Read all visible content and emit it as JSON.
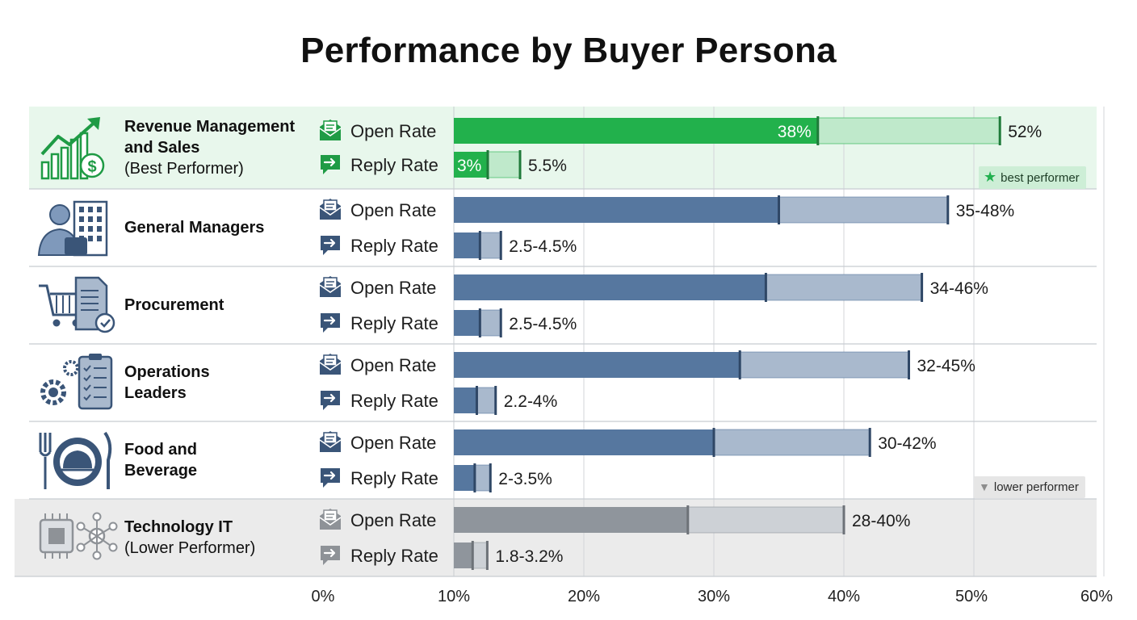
{
  "chart_data": {
    "type": "bar",
    "title": "Performance by Buyer Persona",
    "x_ticks": [
      "0%",
      "10%",
      "20%",
      "30%",
      "40%",
      "50%",
      "60%"
    ],
    "xlim": [
      0,
      60
    ],
    "grid": "vertical",
    "metrics": [
      "Open Rate",
      "Reply Rate"
    ],
    "personas": [
      {
        "name_lines": [
          "Revenue Management",
          "and Sales"
        ],
        "note": "(Best Performer)",
        "icon": "growth-chart-dollar-icon",
        "status": "best",
        "open": {
          "low": 38,
          "high": 52,
          "label": "52%",
          "inner_label": "38%"
        },
        "reply": {
          "low": 3,
          "high": 5.5,
          "label": "5.5%",
          "inner_label": "3%"
        }
      },
      {
        "name_lines": [
          "General Managers"
        ],
        "note": "",
        "icon": "manager-building-icon",
        "status": "normal",
        "open": {
          "low": 35,
          "high": 48,
          "label": "35-48%"
        },
        "reply": {
          "low": 2.5,
          "high": 4.5,
          "label": "2.5-4.5%"
        }
      },
      {
        "name_lines": [
          "Procurement"
        ],
        "note": "",
        "icon": "cart-document-icon",
        "status": "normal",
        "open": {
          "low": 34,
          "high": 46,
          "label": "34-46%"
        },
        "reply": {
          "low": 2.5,
          "high": 4.5,
          "label": "2.5-4.5%"
        }
      },
      {
        "name_lines": [
          "Operations",
          "Leaders"
        ],
        "note": "",
        "icon": "gears-clipboard-icon",
        "status": "normal",
        "open": {
          "low": 32,
          "high": 45,
          "label": "32-45%"
        },
        "reply": {
          "low": 2.2,
          "high": 4,
          "label": "2.2-4%"
        }
      },
      {
        "name_lines": [
          "Food and",
          "Beverage"
        ],
        "note": "",
        "icon": "cloche-utensils-icon",
        "status": "normal",
        "open": {
          "low": 30,
          "high": 42,
          "label": "30-42%"
        },
        "reply": {
          "low": 2,
          "high": 3.5,
          "label": "2-3.5%"
        }
      },
      {
        "name_lines": [
          "Technology IT"
        ],
        "note": "(Lower Performer)",
        "icon": "chip-network-icon",
        "status": "lower",
        "open": {
          "low": 28,
          "high": 40,
          "label": "28-40%"
        },
        "reply": {
          "low": 1.8,
          "high": 3.2,
          "label": "1.8-3.2%"
        }
      }
    ],
    "badges": {
      "best": "best performer",
      "lower": "lower performer"
    },
    "colors": {
      "best_dark": "#22b14c",
      "best_light": "#bfe9cb",
      "best_row": "#e8f7ec",
      "best_stroke": "#1f7a3a",
      "normal_dark": "#56779f",
      "normal_light": "#a9b9cd",
      "normal_stroke": "#2f4766",
      "lower_dark": "#8f959c",
      "lower_light": "#cdd1d6",
      "lower_row": "#ebebeb",
      "lower_stroke": "#6d7278",
      "icon_blue": "#3a5578",
      "icon_green": "#1f9b45",
      "icon_gray": "#8e9297"
    }
  }
}
